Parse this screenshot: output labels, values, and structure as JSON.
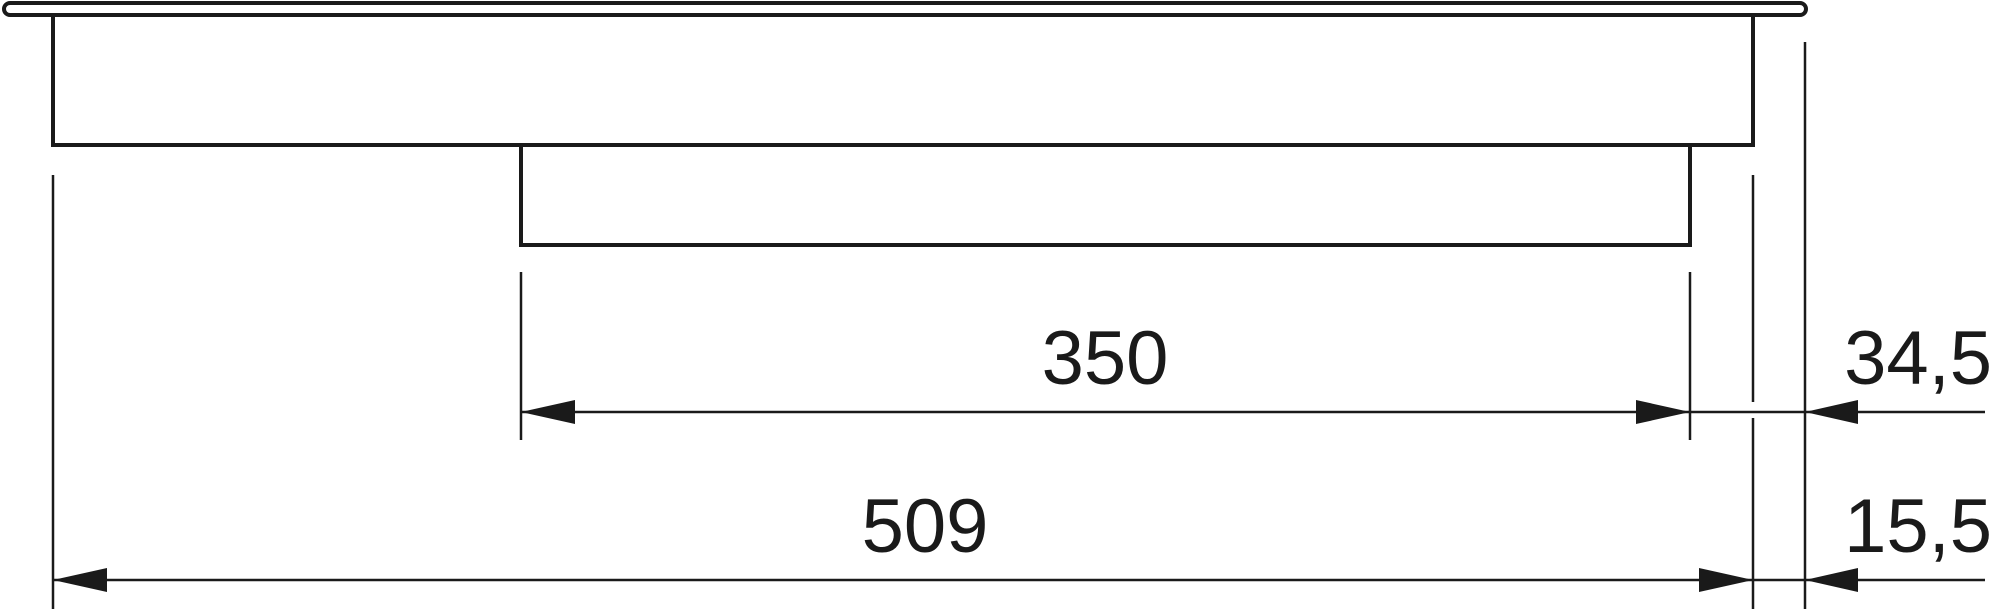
{
  "dimensions": {
    "inner_width": "350",
    "outer_width": "509",
    "upper_offset": "34,5",
    "lower_offset": "15,5"
  },
  "colors": {
    "line": "#1a1a1a",
    "background": "#ffffff"
  }
}
